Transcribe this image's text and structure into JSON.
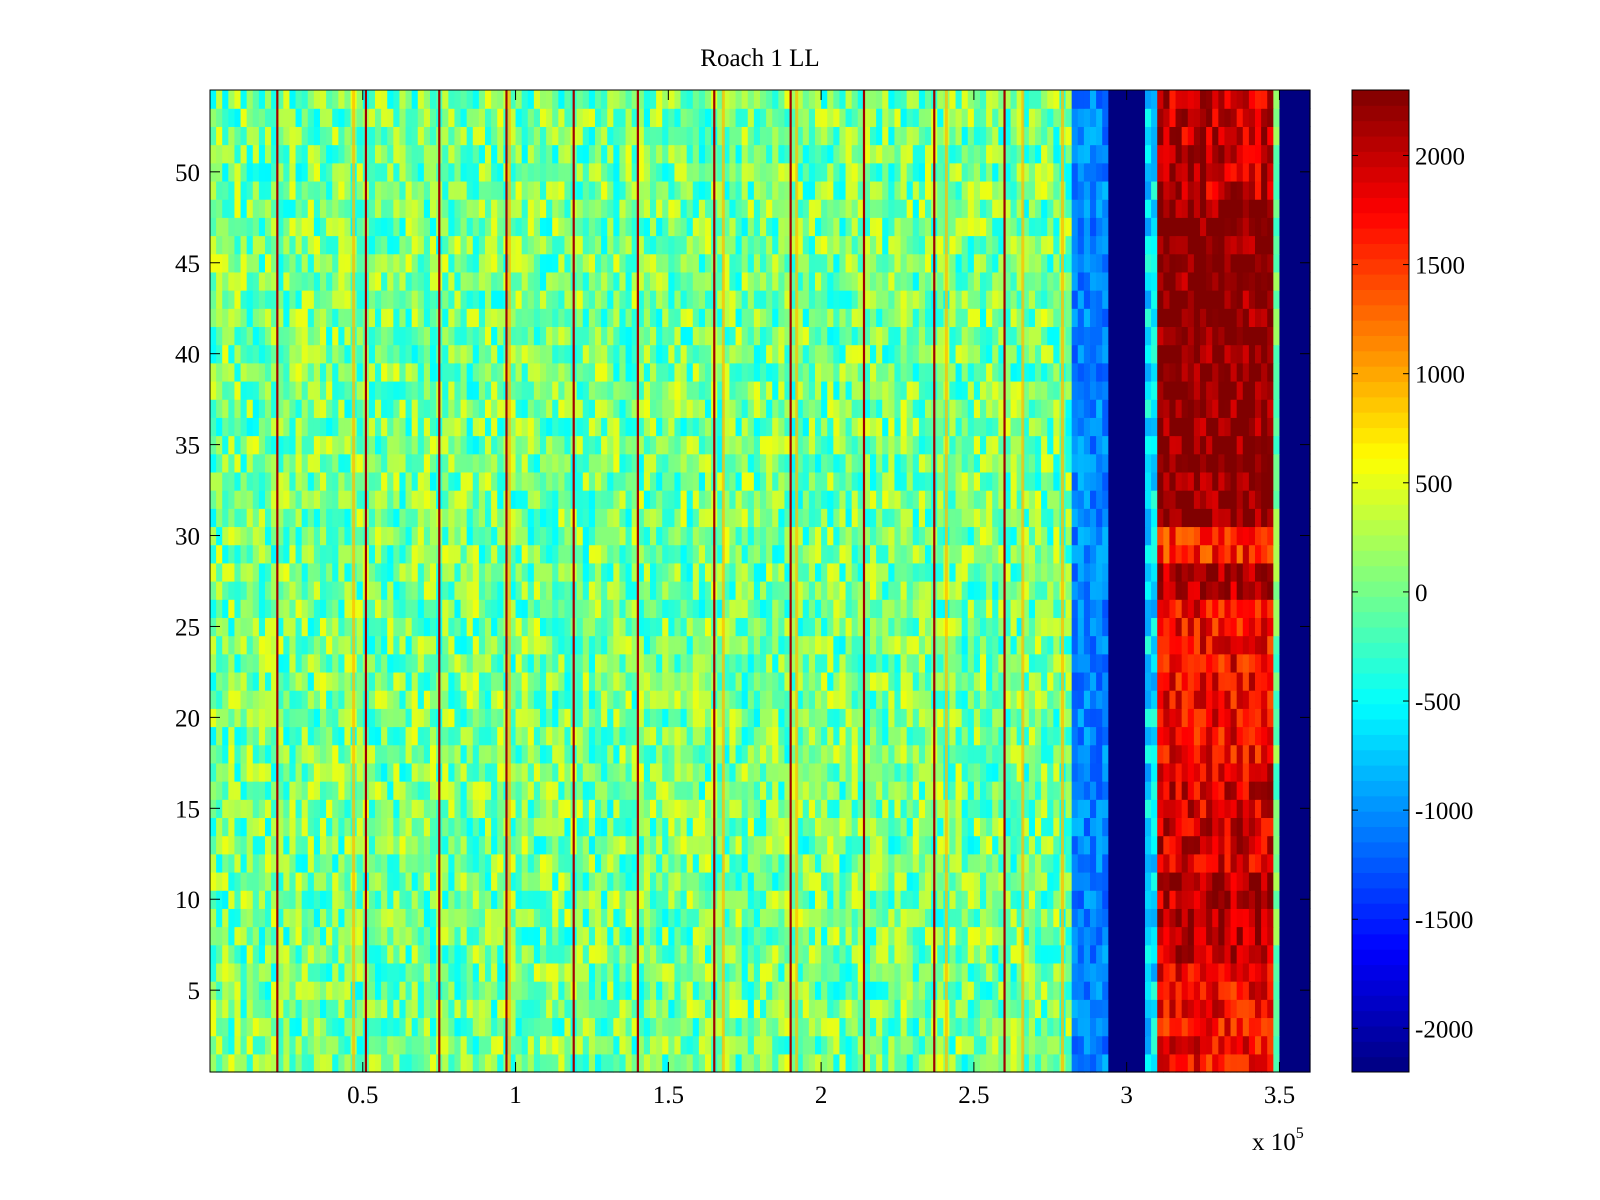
{
  "chart_data": {
    "type": "heatmap",
    "title": "Roach 1 LL",
    "xlabel": "",
    "ylabel": "",
    "x_multiplier_label": "x 10^5",
    "x_multiplier": {
      "base": "x 10",
      "exponent": "5"
    },
    "xlim": [
      0,
      360000
    ],
    "ylim": [
      0.5,
      54.5
    ],
    "x_ticks": [
      {
        "value": 50000,
        "label": "0.5"
      },
      {
        "value": 100000,
        "label": "1"
      },
      {
        "value": 150000,
        "label": "1.5"
      },
      {
        "value": 200000,
        "label": "2"
      },
      {
        "value": 250000,
        "label": "2.5"
      },
      {
        "value": 300000,
        "label": "3"
      },
      {
        "value": 350000,
        "label": "3.5"
      }
    ],
    "y_ticks": [
      {
        "value": 5,
        "label": "5"
      },
      {
        "value": 10,
        "label": "10"
      },
      {
        "value": 15,
        "label": "15"
      },
      {
        "value": 20,
        "label": "20"
      },
      {
        "value": 25,
        "label": "25"
      },
      {
        "value": 30,
        "label": "30"
      },
      {
        "value": 35,
        "label": "35"
      },
      {
        "value": 40,
        "label": "40"
      },
      {
        "value": 45,
        "label": "45"
      },
      {
        "value": 50,
        "label": "50"
      }
    ],
    "colorbar": {
      "colormap": "jet",
      "clim": [
        -2200,
        2300
      ],
      "ticks": [
        {
          "value": 2000,
          "label": "2000"
        },
        {
          "value": 1500,
          "label": "1500"
        },
        {
          "value": 1000,
          "label": "1000"
        },
        {
          "value": 500,
          "label": "500"
        },
        {
          "value": 0,
          "label": "0"
        },
        {
          "value": -500,
          "label": "-500"
        },
        {
          "value": -1000,
          "label": "-1000"
        },
        {
          "value": -1500,
          "label": "-1500"
        },
        {
          "value": -2000,
          "label": "-2000"
        }
      ]
    },
    "rows": 54,
    "regions": [
      {
        "x_range": [
          0,
          283000
        ],
        "mean": 0,
        "spread": 550,
        "description": "noisy background"
      },
      {
        "x_range": [
          283000,
          294000
        ],
        "mean": -1050,
        "spread": 250,
        "description": "blue band"
      },
      {
        "x_range": [
          294000,
          306000
        ],
        "mean": -2200,
        "spread": 0,
        "description": "saturated low"
      },
      {
        "x_range": [
          306000,
          310000
        ],
        "mean": -650,
        "spread": 350,
        "description": "transition"
      },
      {
        "x_range": [
          310000,
          348000
        ],
        "row_means": [
          {
            "rows": [
              1,
              6
            ],
            "mean": 1750
          },
          {
            "rows": [
              7,
              11
            ],
            "mean": 2050
          },
          {
            "rows": [
              12,
              17
            ],
            "mean": 1900
          },
          {
            "rows": [
              18,
              26
            ],
            "mean": 1750
          },
          {
            "rows": [
              27,
              28
            ],
            "mean": 2150
          },
          {
            "rows": [
              29,
              30
            ],
            "mean": 1600
          },
          {
            "rows": [
              31,
              48
            ],
            "mean": 2300
          },
          {
            "rows": [
              49,
              54
            ],
            "mean": 2000
          }
        ],
        "spread": 400,
        "description": "saturated high"
      },
      {
        "x_range": [
          348000,
          349500
        ],
        "mean": 0,
        "spread": 300,
        "description": "thin edge"
      },
      {
        "x_range": [
          349500,
          360000
        ],
        "mean": -2200,
        "spread": 0,
        "description": "saturated low"
      }
    ],
    "vertical_lines_high": [
      22000,
      51000,
      75000,
      97000,
      119000,
      140000,
      165000,
      190000,
      214000,
      237000,
      260000
    ],
    "vertical_lines_warm": [
      47000,
      98000,
      168000,
      192000,
      241000,
      266000,
      279000
    ]
  }
}
